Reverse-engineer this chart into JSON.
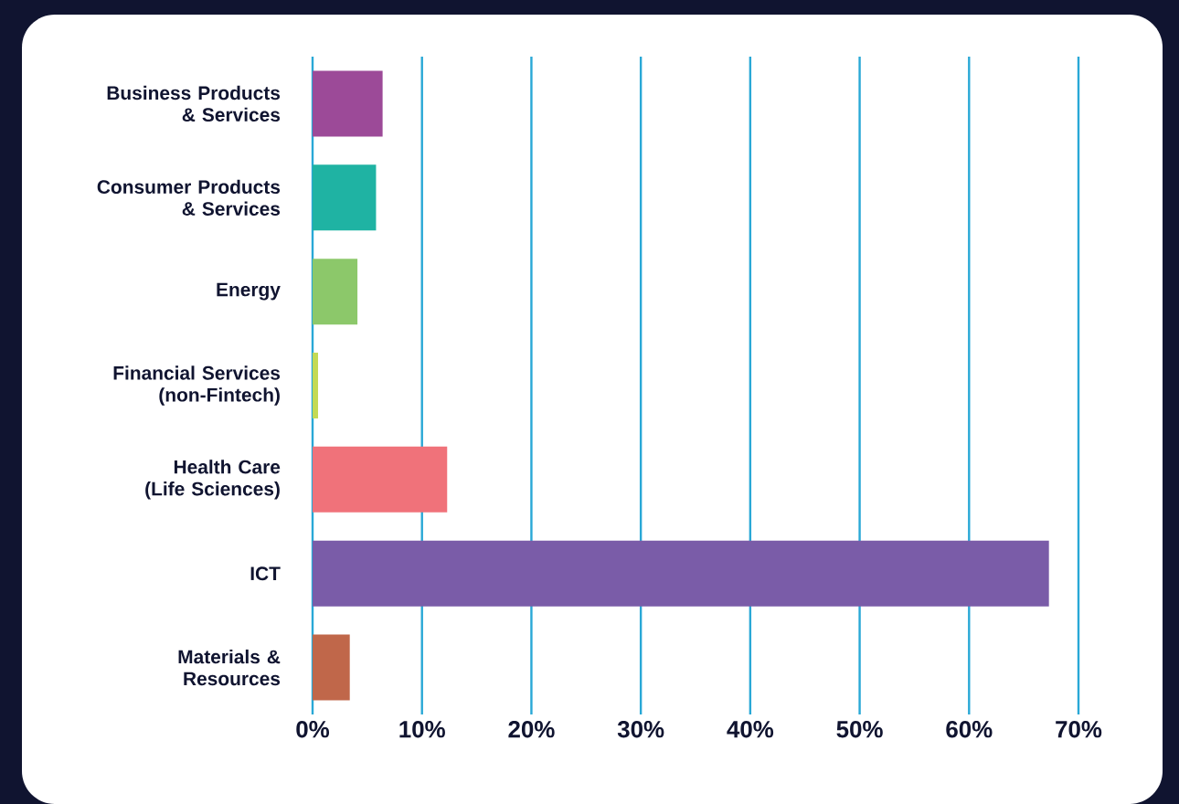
{
  "chart_data": {
    "type": "bar",
    "orientation": "horizontal",
    "categories": [
      "Business Products & Services",
      "Consumer Products & Services",
      "Energy",
      "Financial Services (non-Fintech)",
      "Health Care (Life Sciences)",
      "ICT",
      "Materials & Resources"
    ],
    "values": [
      6.4,
      5.8,
      4.1,
      0.5,
      12.3,
      67.3,
      3.4
    ],
    "colors": [
      "#9c4a98",
      "#1fb3a3",
      "#8cc86a",
      "#c4da55",
      "#f0727a",
      "#7a5ca8",
      "#c0674a"
    ],
    "xlim": [
      0,
      70
    ],
    "xticks": [
      {
        "value": 0,
        "label": "0%"
      },
      {
        "value": 10,
        "label": "10%"
      },
      {
        "value": 20,
        "label": "20%"
      },
      {
        "value": 30,
        "label": "30%"
      },
      {
        "value": 40,
        "label": "40%"
      },
      {
        "value": 50,
        "label": "50%"
      },
      {
        "value": 60,
        "label": "60%"
      },
      {
        "value": 70,
        "label": "70%"
      }
    ],
    "grid": "x"
  }
}
